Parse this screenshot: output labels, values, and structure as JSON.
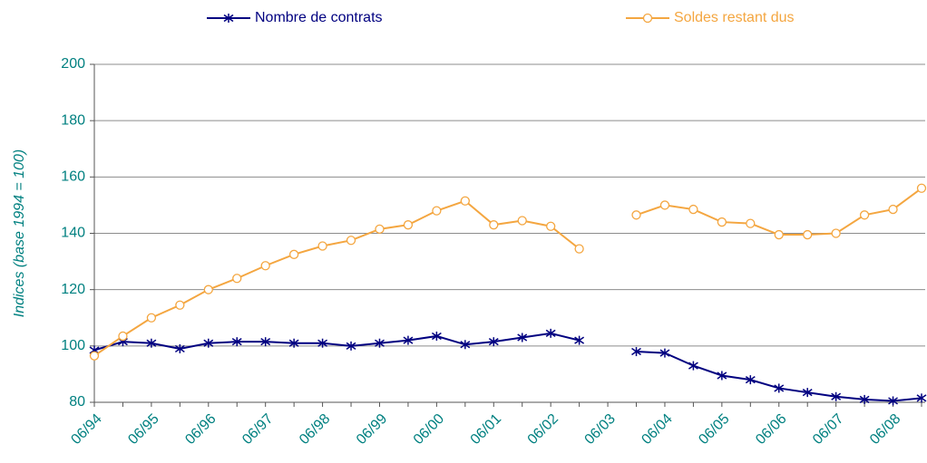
{
  "chart_data": {
    "type": "line",
    "y_axis_label": "Indices (base 1994 = 100)",
    "categories": [
      "06/94",
      null,
      "06/95",
      null,
      "06/96",
      null,
      "06/97",
      null,
      "06/98",
      null,
      "06/99",
      null,
      "06/00",
      null,
      "06/01",
      null,
      "06/02",
      null,
      "06/03",
      null,
      "06/04",
      null,
      "06/05",
      null,
      "06/06",
      null,
      "06/07",
      null,
      "06/08",
      null
    ],
    "series": [
      {
        "name": "Nombre de contrats",
        "color": "#000080",
        "marker": "asterisk",
        "values": [
          98.5,
          101.5,
          101,
          99,
          101,
          101.5,
          101.5,
          101,
          101,
          100,
          101,
          102,
          103.5,
          100.5,
          101.5,
          103,
          104.5,
          102,
          null,
          98,
          97.5,
          93,
          89.5,
          88,
          85,
          83.5,
          82,
          81,
          80.5,
          81.5
        ]
      },
      {
        "name": "Soldes restant dus",
        "color": "#f4a640",
        "marker": "circle",
        "values": [
          96.5,
          103.5,
          110,
          114.5,
          120,
          124,
          128.5,
          132.5,
          135.5,
          137.5,
          141.5,
          143,
          148,
          151.5,
          143,
          144.5,
          142.5,
          134.5,
          null,
          146.5,
          150,
          148.5,
          144,
          143.5,
          139.5,
          139.5,
          140,
          146.5,
          148.5,
          156
        ]
      }
    ],
    "ylim": [
      80,
      200
    ],
    "yticks": [
      80,
      100,
      120,
      140,
      160,
      180,
      200
    ],
    "grid": true,
    "legend": "top",
    "tick_color": "#008080"
  }
}
